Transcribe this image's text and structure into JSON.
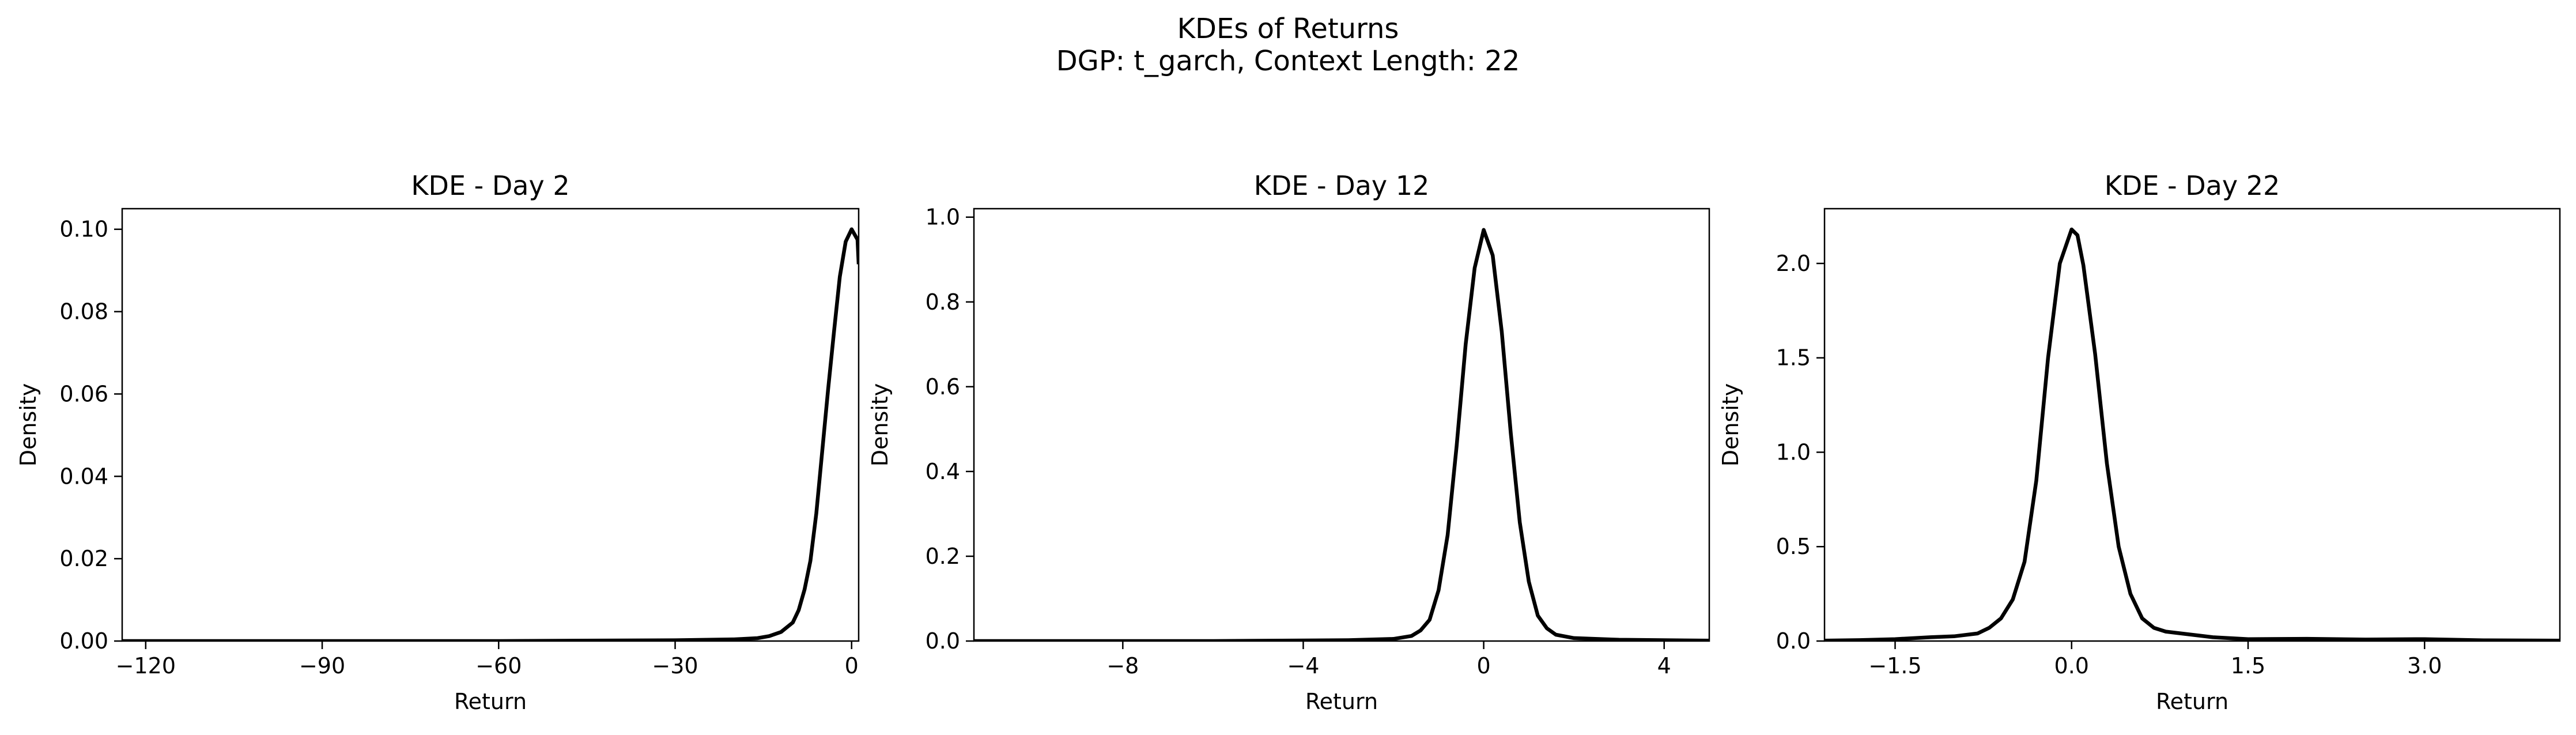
{
  "figure": {
    "title_line1": "KDEs of Returns",
    "title_line2": "DGP: t_garch, Context Length: 22"
  },
  "chart_data": [
    {
      "type": "line",
      "title": "KDE - Day 2",
      "xlabel": "Return",
      "ylabel": "Density",
      "xlim": [
        -124,
        1.2
      ],
      "ylim": [
        0,
        0.105
      ],
      "xticks": [
        -120,
        -90,
        -60,
        -30,
        0
      ],
      "xtick_labels": [
        "−120",
        "−90",
        "−60",
        "−30",
        "0"
      ],
      "yticks": [
        0,
        0.02,
        0.04,
        0.06,
        0.08,
        0.1
      ],
      "ytick_labels": [
        "0.00",
        "0.02",
        "0.04",
        "0.06",
        "0.08",
        "0.10"
      ],
      "grid": false,
      "series_color": "#000000",
      "x": [
        -124,
        -60,
        -30,
        -20,
        -16,
        -14,
        -12,
        -10,
        -9,
        -8,
        -7,
        -6,
        -5,
        -4,
        -3,
        -2,
        -1,
        0,
        1,
        1.2
      ],
      "y": [
        0,
        0,
        0.0002,
        0.0004,
        0.0007,
        0.0012,
        0.0022,
        0.0045,
        0.0075,
        0.0125,
        0.0195,
        0.031,
        0.046,
        0.061,
        0.075,
        0.0885,
        0.097,
        0.1,
        0.0975,
        0.0915
      ]
    },
    {
      "type": "line",
      "title": "KDE - Day 12",
      "xlabel": "Return",
      "ylabel": "Density",
      "xlim": [
        -11.3,
        5
      ],
      "ylim": [
        0,
        1.02
      ],
      "xticks": [
        -8,
        -4,
        0,
        4
      ],
      "xtick_labels": [
        "−8",
        "−4",
        "0",
        "4"
      ],
      "yticks": [
        0,
        0.2,
        0.4,
        0.6,
        0.8,
        1.0
      ],
      "ytick_labels": [
        "0.0",
        "0.2",
        "0.4",
        "0.6",
        "0.8",
        "1.0"
      ],
      "grid": false,
      "series_color": "#000000",
      "x": [
        -11.3,
        -6,
        -3,
        -2,
        -1.6,
        -1.4,
        -1.2,
        -1,
        -0.8,
        -0.6,
        -0.4,
        -0.2,
        0,
        0.2,
        0.4,
        0.6,
        0.8,
        1,
        1.2,
        1.4,
        1.6,
        2,
        3,
        5
      ],
      "y": [
        0,
        0,
        0.002,
        0.005,
        0.012,
        0.025,
        0.05,
        0.12,
        0.25,
        0.46,
        0.7,
        0.88,
        0.97,
        0.91,
        0.73,
        0.49,
        0.28,
        0.14,
        0.06,
        0.03,
        0.015,
        0.007,
        0.003,
        0.001
      ]
    },
    {
      "type": "line",
      "title": "KDE - Day 22",
      "xlabel": "Return",
      "ylabel": "Density",
      "xlim": [
        -2.1,
        4.15
      ],
      "ylim": [
        0,
        2.29
      ],
      "xticks": [
        -1.5,
        0,
        1.5,
        3
      ],
      "xtick_labels": [
        "−1.5",
        "0.0",
        "1.5",
        "3.0"
      ],
      "yticks": [
        0,
        0.5,
        1.0,
        1.5,
        2.0
      ],
      "ytick_labels": [
        "0.0",
        "0.5",
        "1.0",
        "1.5",
        "2.0"
      ],
      "grid": false,
      "series_color": "#000000",
      "x": [
        -2.1,
        -1.8,
        -1.5,
        -1.2,
        -1.0,
        -0.8,
        -0.7,
        -0.6,
        -0.5,
        -0.4,
        -0.3,
        -0.2,
        -0.1,
        0,
        0.05,
        0.1,
        0.2,
        0.3,
        0.4,
        0.5,
        0.6,
        0.7,
        0.8,
        1.0,
        1.2,
        1.5,
        2.0,
        2.5,
        3.0,
        3.5,
        4.15
      ],
      "y": [
        0.002,
        0.005,
        0.01,
        0.02,
        0.025,
        0.04,
        0.07,
        0.12,
        0.22,
        0.42,
        0.85,
        1.5,
        2.0,
        2.18,
        2.15,
        1.99,
        1.52,
        0.94,
        0.5,
        0.25,
        0.12,
        0.07,
        0.05,
        0.035,
        0.02,
        0.01,
        0.012,
        0.008,
        0.01,
        0.004,
        0.002
      ]
    }
  ]
}
